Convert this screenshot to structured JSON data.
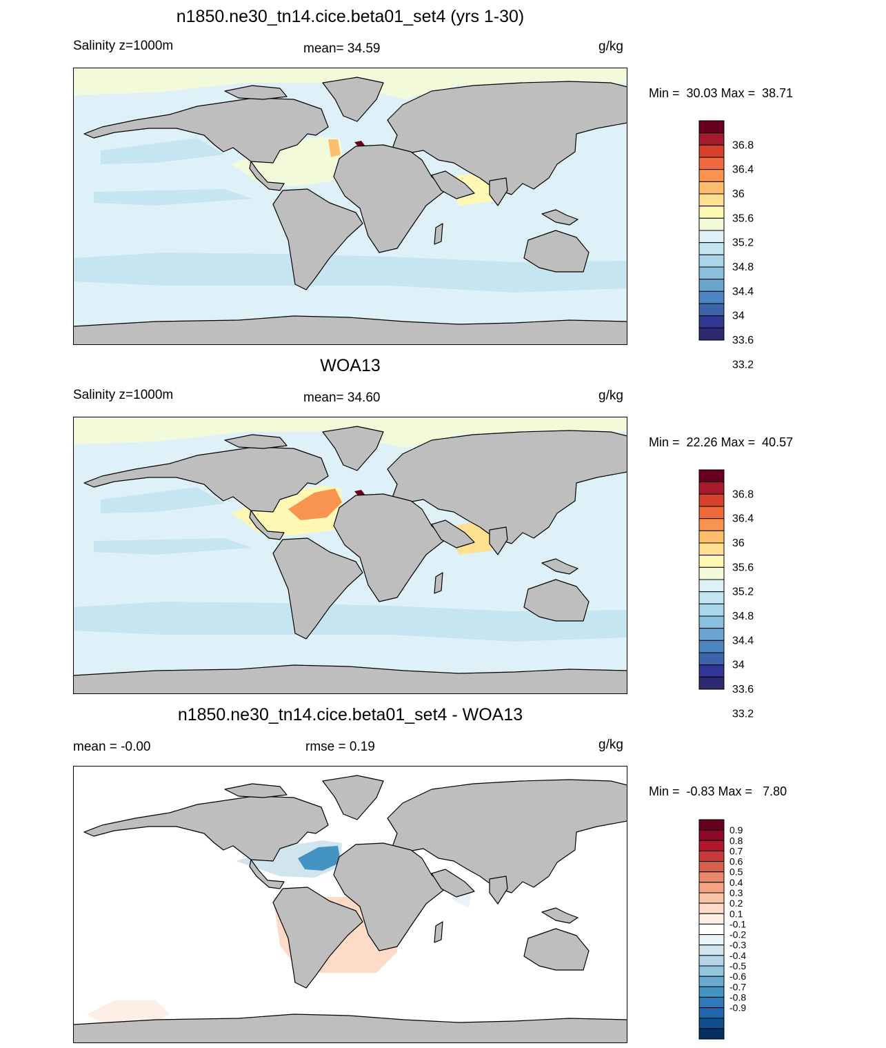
{
  "land_color": "#bebebe",
  "coast_color": "#000000",
  "panels": [
    {
      "title": "n1850.ne30_tn14.cice.beta01_set4 (yrs 1-30)",
      "left_label": "Salinity z=1000m",
      "center_label": "mean=  34.59",
      "units": "g/kg",
      "minmax": "Min =  30.03 Max =  38.71"
    },
    {
      "title": "WOA13",
      "left_label": "Salinity z=1000m",
      "center_label": "mean=  34.60",
      "units": "g/kg",
      "minmax": "Min =  22.26 Max =  40.57"
    },
    {
      "title": "n1850.ne30_tn14.cice.beta01_set4 - WOA13",
      "left_label": "mean =  -0.00",
      "center_label": "rmse =   0.19",
      "units": "g/kg",
      "minmax": "Min =  -0.83 Max =   7.80"
    }
  ],
  "chart_data": [
    {
      "type": "heatmap",
      "title": "n1850.ne30_tn14.cice.beta01_set4 (yrs 1-30)",
      "variable": "Salinity z=1000m",
      "units": "g/kg",
      "mean": 34.59,
      "min": 30.03,
      "max": 38.71,
      "colorbar_labels": [
        "36.8",
        "36.4",
        "36",
        "35.6",
        "35.2",
        "34.8",
        "34.4",
        "34",
        "33.6",
        "33.2"
      ],
      "colorbar_colors": [
        "#67001f",
        "#a51b2b",
        "#d6402c",
        "#ee6a3c",
        "#f8944f",
        "#fdbe6f",
        "#fee090",
        "#fff8b5",
        "#f3fad9",
        "#dff1f8",
        "#c5e6f1",
        "#a9d6e9",
        "#89c0df",
        "#6aa5d0",
        "#4c86c0",
        "#3d63ab",
        "#313694",
        "#2b2870"
      ],
      "regions": {
        "background": "#dff1f8",
        "southern_band": "#c5e6f1",
        "pacific_band": "#c5e6f1",
        "north_atlantic": "#f3fad9",
        "arctic": "#f3fad9",
        "arabian_sea": "#fff8b5",
        "gibraltar": "#fdbe6f",
        "mediterranean": "#67001f"
      }
    },
    {
      "type": "heatmap",
      "title": "WOA13",
      "variable": "Salinity z=1000m",
      "units": "g/kg",
      "mean": 34.6,
      "min": 22.26,
      "max": 40.57,
      "colorbar_labels": [
        "36.8",
        "36.4",
        "36",
        "35.6",
        "35.2",
        "34.8",
        "34.4",
        "34",
        "33.6",
        "33.2"
      ],
      "colorbar_colors": [
        "#67001f",
        "#a51b2b",
        "#d6402c",
        "#ee6a3c",
        "#f8944f",
        "#fdbe6f",
        "#fee090",
        "#fff8b5",
        "#f3fad9",
        "#dff1f8",
        "#c5e6f1",
        "#a9d6e9",
        "#89c0df",
        "#6aa5d0",
        "#4c86c0",
        "#3d63ab",
        "#313694",
        "#2b2870"
      ],
      "regions": {
        "background": "#dff1f8",
        "southern_band": "#c5e6f1",
        "pacific_band": "#c5e6f1",
        "north_atlantic": "#fff8b5",
        "arctic": "#f3fad9",
        "arabian_sea": "#fee090",
        "gibraltar": "#f8944f",
        "mediterranean": "#67001f",
        "black_sea": "#3d63ab"
      }
    },
    {
      "type": "heatmap",
      "title": "n1850.ne30_tn14.cice.beta01_set4 - WOA13",
      "units": "g/kg",
      "mean": -0.0,
      "rmse": 0.19,
      "min": -0.83,
      "max": 7.8,
      "colorbar_labels": [
        "0.9",
        "0.8",
        "0.7",
        "0.6",
        "0.5",
        "0.4",
        "0.3",
        "0.2",
        "0.1",
        "-0.1",
        "-0.2",
        "-0.3",
        "-0.4",
        "-0.5",
        "-0.6",
        "-0.7",
        "-0.8",
        "-0.9"
      ],
      "colorbar_colors": [
        "#67001f",
        "#8b0a26",
        "#b2182b",
        "#c53a3a",
        "#d6604d",
        "#e8896b",
        "#f4a582",
        "#f8c4a8",
        "#fddbc7",
        "#fdeee6",
        "#ffffff",
        "#e9f3f8",
        "#d1e5f0",
        "#b4d6e8",
        "#92c5de",
        "#6aaad1",
        "#4393c3",
        "#2f7ab6",
        "#2166ac",
        "#0f4d8f",
        "#053061"
      ],
      "regions": {
        "background": "#ffffff",
        "south_atlantic": "#fddbc7",
        "east_pacific": "#fdeee6",
        "north_atlantic": "#d1e5f0",
        "gibraltar": "#4393c3",
        "arabian_sea": "#e9f3f8"
      }
    }
  ]
}
